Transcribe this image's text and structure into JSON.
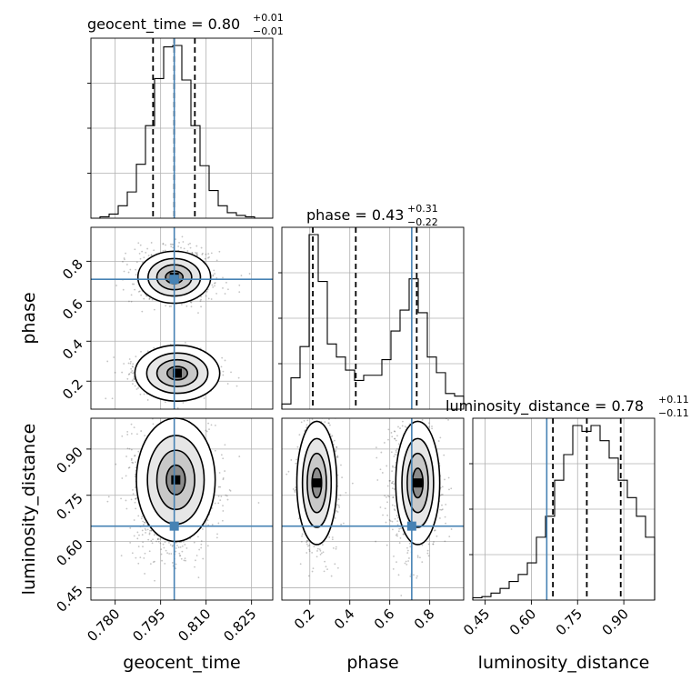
{
  "chart_data": {
    "type": "corner",
    "parameters": [
      "geocent_time",
      "phase",
      "luminosity_distance"
    ],
    "titles": [
      {
        "param": "geocent_time",
        "text": "geocent_time = 0.80",
        "plus": "+0.01",
        "minus": "−0.01"
      },
      {
        "param": "phase",
        "text": "phase = 0.43",
        "plus": "+0.31",
        "minus": "−0.22"
      },
      {
        "param": "luminosity_distance",
        "text": "luminosity_distance = 0.78",
        "plus": "+0.11",
        "minus": "−0.11"
      }
    ],
    "ranges": {
      "geocent_time": [
        0.772,
        0.832
      ],
      "phase": [
        0.06,
        0.97
      ],
      "luminosity_distance": [
        0.41,
        1.0
      ]
    },
    "ticks": {
      "geocent_time": [
        "0.780",
        "0.795",
        "0.810",
        "0.825"
      ],
      "phase_x": [
        "0.2",
        "0.4",
        "0.6",
        "0.8"
      ],
      "phase_y": [
        "0.2",
        "0.4",
        "0.6",
        "0.8"
      ],
      "luminosity_distance": [
        "0.45",
        "0.60",
        "0.75",
        "0.90"
      ]
    },
    "truths": {
      "geocent_time": 0.7995,
      "phase": 0.71,
      "luminosity_distance": 0.65
    },
    "quantiles": {
      "geocent_time": [
        0.7925,
        0.7995,
        0.8063
      ],
      "phase": [
        0.215,
        0.43,
        0.735
      ],
      "luminosity_distance": [
        0.67,
        0.78,
        0.89
      ]
    },
    "histograms": {
      "geocent_time": {
        "bins": [
          0.772,
          0.775,
          0.778,
          0.781,
          0.784,
          0.787,
          0.79,
          0.793,
          0.796,
          0.799,
          0.802,
          0.805,
          0.808,
          0.811,
          0.814,
          0.817,
          0.82,
          0.823,
          0.826,
          0.829,
          0.832
        ],
        "counts": [
          0,
          1,
          3,
          9,
          19,
          39,
          67,
          101,
          124,
          125,
          100,
          67,
          38,
          20,
          9,
          4,
          2,
          1,
          0,
          0
        ]
      },
      "phase": {
        "bins": [
          0.06,
          0.1055,
          0.151,
          0.1965,
          0.242,
          0.2875,
          0.333,
          0.3785,
          0.424,
          0.4695,
          0.515,
          0.5605,
          0.606,
          0.6515,
          0.697,
          0.7425,
          0.788,
          0.8335,
          0.879,
          0.9245,
          0.97
        ],
        "counts": [
          2,
          12,
          24,
          67,
          49,
          25,
          20,
          15,
          11,
          13,
          13,
          19,
          30,
          38,
          50,
          37,
          20,
          14,
          6,
          5
        ]
      },
      "luminosity_distance": {
        "bins": [
          0.41,
          0.4395,
          0.469,
          0.4985,
          0.528,
          0.5575,
          0.587,
          0.6165,
          0.646,
          0.6755,
          0.705,
          0.7345,
          0.764,
          0.7935,
          0.823,
          0.8525,
          0.882,
          0.9115,
          0.941,
          0.9705,
          1.0
        ],
        "counts": [
          2,
          3,
          6,
          10,
          16,
          22,
          32,
          54,
          72,
          103,
          125,
          150,
          145,
          150,
          137,
          122,
          103,
          88,
          72,
          54
        ]
      }
    },
    "colors": {
      "truth": "#4682b4",
      "contour": "#000000",
      "hist": "#000000",
      "grid": "#b0b0b0"
    },
    "grid": true
  }
}
